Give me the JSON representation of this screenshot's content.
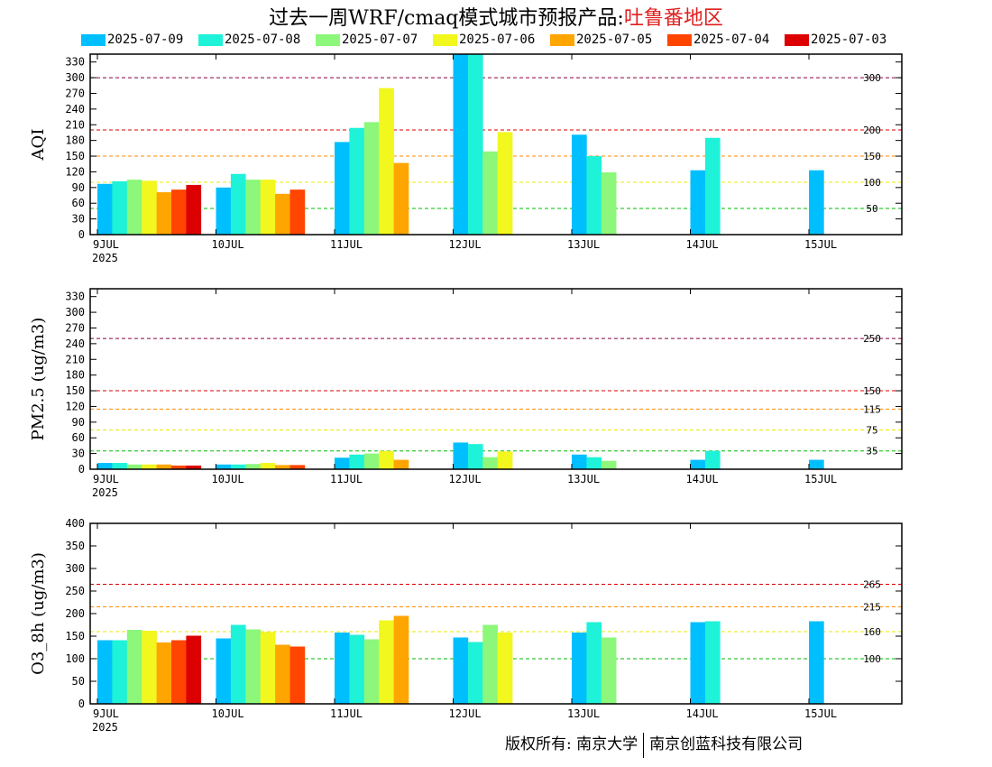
{
  "header": {
    "title_prefix": "过去一周WRF/cmaq模式城市预报产品:",
    "title_region": "吐鲁番地区",
    "region_color": "#e02020"
  },
  "legend": [
    {
      "label": "2025-07-09",
      "color": "#00bfff"
    },
    {
      "label": "2025-07-08",
      "color": "#1ef2d8"
    },
    {
      "label": "2025-07-07",
      "color": "#8cf77a"
    },
    {
      "label": "2025-07-06",
      "color": "#f2f71e"
    },
    {
      "label": "2025-07-05",
      "color": "#ffa500"
    },
    {
      "label": "2025-07-04",
      "color": "#ff4500"
    },
    {
      "label": "2025-07-03",
      "color": "#dd0000"
    }
  ],
  "footer": {
    "owner_label": "版权所有: 南京大学",
    "partner_label": "南京创蓝科技有限公司"
  },
  "chart_data": [
    {
      "type": "bar",
      "ylabel": "AQI",
      "ylim": [
        0,
        345
      ],
      "yticks": [
        0,
        30,
        60,
        90,
        120,
        150,
        180,
        210,
        240,
        270,
        300,
        330
      ],
      "categories": [
        "9JUL",
        "10JUL",
        "11JUL",
        "12JUL",
        "13JUL",
        "14JUL",
        "15JUL"
      ],
      "year_label": "2025",
      "thresholds": [
        {
          "value": 50,
          "label": "50",
          "color": "#00bb00"
        },
        {
          "value": 100,
          "label": "100",
          "color": "#e8e800"
        },
        {
          "value": 150,
          "label": "150",
          "color": "#ff8c00"
        },
        {
          "value": 200,
          "label": "200",
          "color": "#dd0000"
        },
        {
          "value": 300,
          "label": "300",
          "color": "#8b0040"
        }
      ],
      "series": [
        {
          "name": "2025-07-09",
          "values": [
            97,
            90,
            177,
            345,
            191,
            123,
            123
          ]
        },
        {
          "name": "2025-07-08",
          "values": [
            102,
            116,
            204,
            345,
            150,
            185,
            null
          ]
        },
        {
          "name": "2025-07-07",
          "values": [
            105,
            105,
            215,
            159,
            119,
            null,
            null
          ]
        },
        {
          "name": "2025-07-06",
          "values": [
            103,
            105,
            280,
            196,
            null,
            null,
            null
          ]
        },
        {
          "name": "2025-07-05",
          "values": [
            81,
            78,
            137,
            null,
            null,
            null,
            null
          ]
        },
        {
          "name": "2025-07-04",
          "values": [
            86,
            86,
            null,
            null,
            null,
            null,
            null
          ]
        },
        {
          "name": "2025-07-03",
          "values": [
            95,
            null,
            null,
            null,
            null,
            null,
            null
          ]
        }
      ]
    },
    {
      "type": "bar",
      "ylabel": "PM2.5 (ug/m3)",
      "ylim": [
        0,
        345
      ],
      "yticks": [
        0,
        30,
        60,
        90,
        120,
        150,
        180,
        210,
        240,
        270,
        300,
        330
      ],
      "categories": [
        "9JUL",
        "10JUL",
        "11JUL",
        "12JUL",
        "13JUL",
        "14JUL",
        "15JUL"
      ],
      "year_label": "2025",
      "thresholds": [
        {
          "value": 35,
          "label": "35",
          "color": "#00bb00"
        },
        {
          "value": 75,
          "label": "75",
          "color": "#e8e800"
        },
        {
          "value": 115,
          "label": "115",
          "color": "#ff8c00"
        },
        {
          "value": 150,
          "label": "150",
          "color": "#dd0000"
        },
        {
          "value": 250,
          "label": "250",
          "color": "#8b0040"
        }
      ],
      "series": [
        {
          "name": "2025-07-09",
          "values": [
            12,
            9,
            22,
            51,
            28,
            18,
            18
          ]
        },
        {
          "name": "2025-07-08",
          "values": [
            12,
            9,
            28,
            48,
            23,
            35,
            null
          ]
        },
        {
          "name": "2025-07-07",
          "values": [
            9,
            10,
            30,
            23,
            16,
            null,
            null
          ]
        },
        {
          "name": "2025-07-06",
          "values": [
            9,
            12,
            35,
            34,
            null,
            null,
            null
          ]
        },
        {
          "name": "2025-07-05",
          "values": [
            9,
            8,
            18,
            null,
            null,
            null,
            null
          ]
        },
        {
          "name": "2025-07-04",
          "values": [
            7,
            8,
            null,
            null,
            null,
            null,
            null
          ]
        },
        {
          "name": "2025-07-03",
          "values": [
            7,
            null,
            null,
            null,
            null,
            null,
            null
          ]
        }
      ]
    },
    {
      "type": "bar",
      "ylabel": "O3_8h (ug/m3)",
      "ylim": [
        0,
        400
      ],
      "yticks": [
        0,
        50,
        100,
        150,
        200,
        250,
        300,
        350,
        400
      ],
      "categories": [
        "9JUL",
        "10JUL",
        "11JUL",
        "12JUL",
        "13JUL",
        "14JUL",
        "15JUL"
      ],
      "year_label": "2025",
      "thresholds": [
        {
          "value": 100,
          "label": "100",
          "color": "#00bb00"
        },
        {
          "value": 160,
          "label": "160",
          "color": "#e8e800"
        },
        {
          "value": 215,
          "label": "215",
          "color": "#ff8c00"
        },
        {
          "value": 265,
          "label": "265",
          "color": "#dd0000"
        }
      ],
      "series": [
        {
          "name": "2025-07-09",
          "values": [
            141,
            145,
            158,
            147,
            158,
            181,
            183
          ]
        },
        {
          "name": "2025-07-08",
          "values": [
            141,
            175,
            153,
            137,
            181,
            183,
            null
          ]
        },
        {
          "name": "2025-07-07",
          "values": [
            164,
            165,
            143,
            175,
            147,
            null,
            null
          ]
        },
        {
          "name": "2025-07-06",
          "values": [
            162,
            159,
            185,
            158,
            null,
            null,
            null
          ]
        },
        {
          "name": "2025-07-05",
          "values": [
            136,
            131,
            195,
            null,
            null,
            null,
            null
          ]
        },
        {
          "name": "2025-07-04",
          "values": [
            141,
            127,
            null,
            null,
            null,
            null,
            null
          ]
        },
        {
          "name": "2025-07-03",
          "values": [
            151,
            null,
            null,
            null,
            null,
            null,
            null
          ]
        }
      ]
    }
  ]
}
